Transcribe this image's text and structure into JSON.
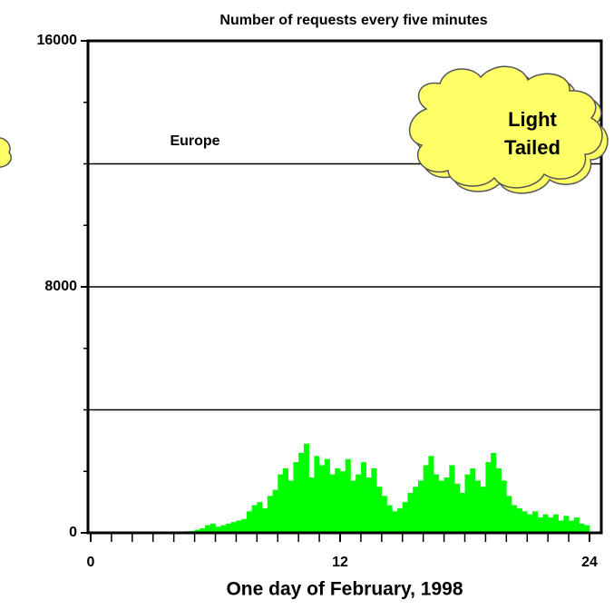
{
  "chart_data": {
    "type": "histogram",
    "title": "Number of requests every five minutes",
    "x_label": "One day of February, 1998",
    "annotations": [
      "Europe",
      "Light",
      "Tailed"
    ],
    "color": "#00ff00",
    "bins": [
      0,
      0.25,
      0.5,
      0.75,
      1,
      1.25,
      1.5,
      1.75,
      2,
      2.25,
      2.5,
      2.75,
      3,
      3.25,
      3.5,
      3.75,
      4,
      4.25,
      4.5,
      4.75,
      5,
      5.25,
      5.5,
      5.75,
      6,
      6.25,
      6.5,
      6.75,
      7,
      7.25,
      7.5,
      7.75,
      8,
      8.25,
      8.5,
      8.75,
      9,
      9.25,
      9.5,
      9.75,
      10,
      10.25,
      10.5,
      10.75,
      11,
      11.25,
      11.5,
      11.75,
      12,
      12.25,
      12.5,
      12.75,
      13,
      13.25,
      13.5,
      13.75,
      14,
      14.25,
      14.5,
      14.75,
      15,
      15.25,
      15.5,
      15.75,
      16,
      16.25,
      16.5,
      16.75,
      17,
      17.25,
      17.5,
      17.75,
      18,
      18.25,
      18.5,
      18.75,
      19,
      19.25,
      19.5,
      19.75,
      20,
      20.25,
      20.5,
      20.75,
      21,
      21.25,
      21.5,
      21.75,
      22,
      22.25,
      22.5,
      22.75,
      23,
      23.25,
      23.5,
      23.75,
      24
    ],
    "values": [
      20,
      20,
      20,
      20,
      20,
      20,
      20,
      20,
      20,
      20,
      20,
      20,
      30,
      30,
      30,
      30,
      40,
      40,
      50,
      60,
      100,
      150,
      250,
      300,
      200,
      250,
      300,
      350,
      400,
      450,
      700,
      900,
      1000,
      800,
      1200,
      1400,
      1900,
      2100,
      1700,
      2300,
      2600,
      2900,
      1800,
      2500,
      2200,
      2400,
      1900,
      2100,
      2000,
      2400,
      1700,
      1900,
      2300,
      1800,
      2100,
      1500,
      1200,
      900,
      700,
      800,
      1000,
      1300,
      1500,
      1700,
      2200,
      2500,
      1900,
      1700,
      1800,
      2200,
      1600,
      1300,
      1900,
      2100,
      1700,
      1500,
      2300,
      2600,
      2100,
      1700,
      1200,
      900,
      800,
      700,
      600,
      700,
      500,
      600,
      500,
      600,
      400,
      550,
      400,
      500,
      300,
      250
    ],
    "xlim": [
      0,
      24.5
    ],
    "xticks": [
      0,
      12,
      24
    ],
    "xminorticks": [
      1,
      2,
      3,
      4,
      5,
      6,
      7,
      8,
      9,
      10,
      11,
      13,
      14,
      15,
      16,
      17,
      18,
      19,
      20,
      21,
      22,
      23
    ],
    "ylim": [
      0,
      16000
    ],
    "yticks": [
      0,
      8000,
      16000
    ],
    "yminorticks": [
      2000,
      4000,
      6000,
      10000,
      12000,
      14000
    ],
    "grid_lines": [
      4000,
      8000,
      12000
    ]
  }
}
